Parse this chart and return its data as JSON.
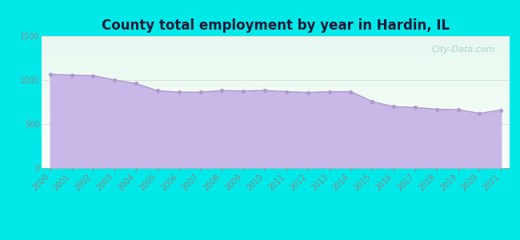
{
  "title": "County total employment by year in Hardin, IL",
  "title_fontsize": 12,
  "title_fontweight": "bold",
  "title_color": "#1a1a3a",
  "background_color": "#00e8e8",
  "plot_bg_color_top": "#e8f8f0",
  "plot_bg_color_bottom": "#f8fff8",
  "fill_color": "#c8b8e8",
  "line_color": "#b09acc",
  "marker_color": "#b09acc",
  "marker_size": 14,
  "years": [
    2000,
    2001,
    2002,
    2003,
    2004,
    2005,
    2006,
    2007,
    2008,
    2009,
    2010,
    2011,
    2012,
    2013,
    2014,
    2015,
    2016,
    2017,
    2018,
    2019,
    2020,
    2021
  ],
  "values": [
    1065,
    1055,
    1050,
    1000,
    960,
    878,
    862,
    862,
    880,
    875,
    882,
    868,
    858,
    868,
    868,
    755,
    698,
    688,
    668,
    662,
    622,
    658
  ],
  "ylim": [
    0,
    1500
  ],
  "yticks": [
    0,
    500,
    1000,
    1500
  ],
  "watermark": "City-Data.com",
  "watermark_fontsize": 8,
  "watermark_color": "#99cccc",
  "tick_label_fontsize": 7,
  "tick_color": "#888888"
}
